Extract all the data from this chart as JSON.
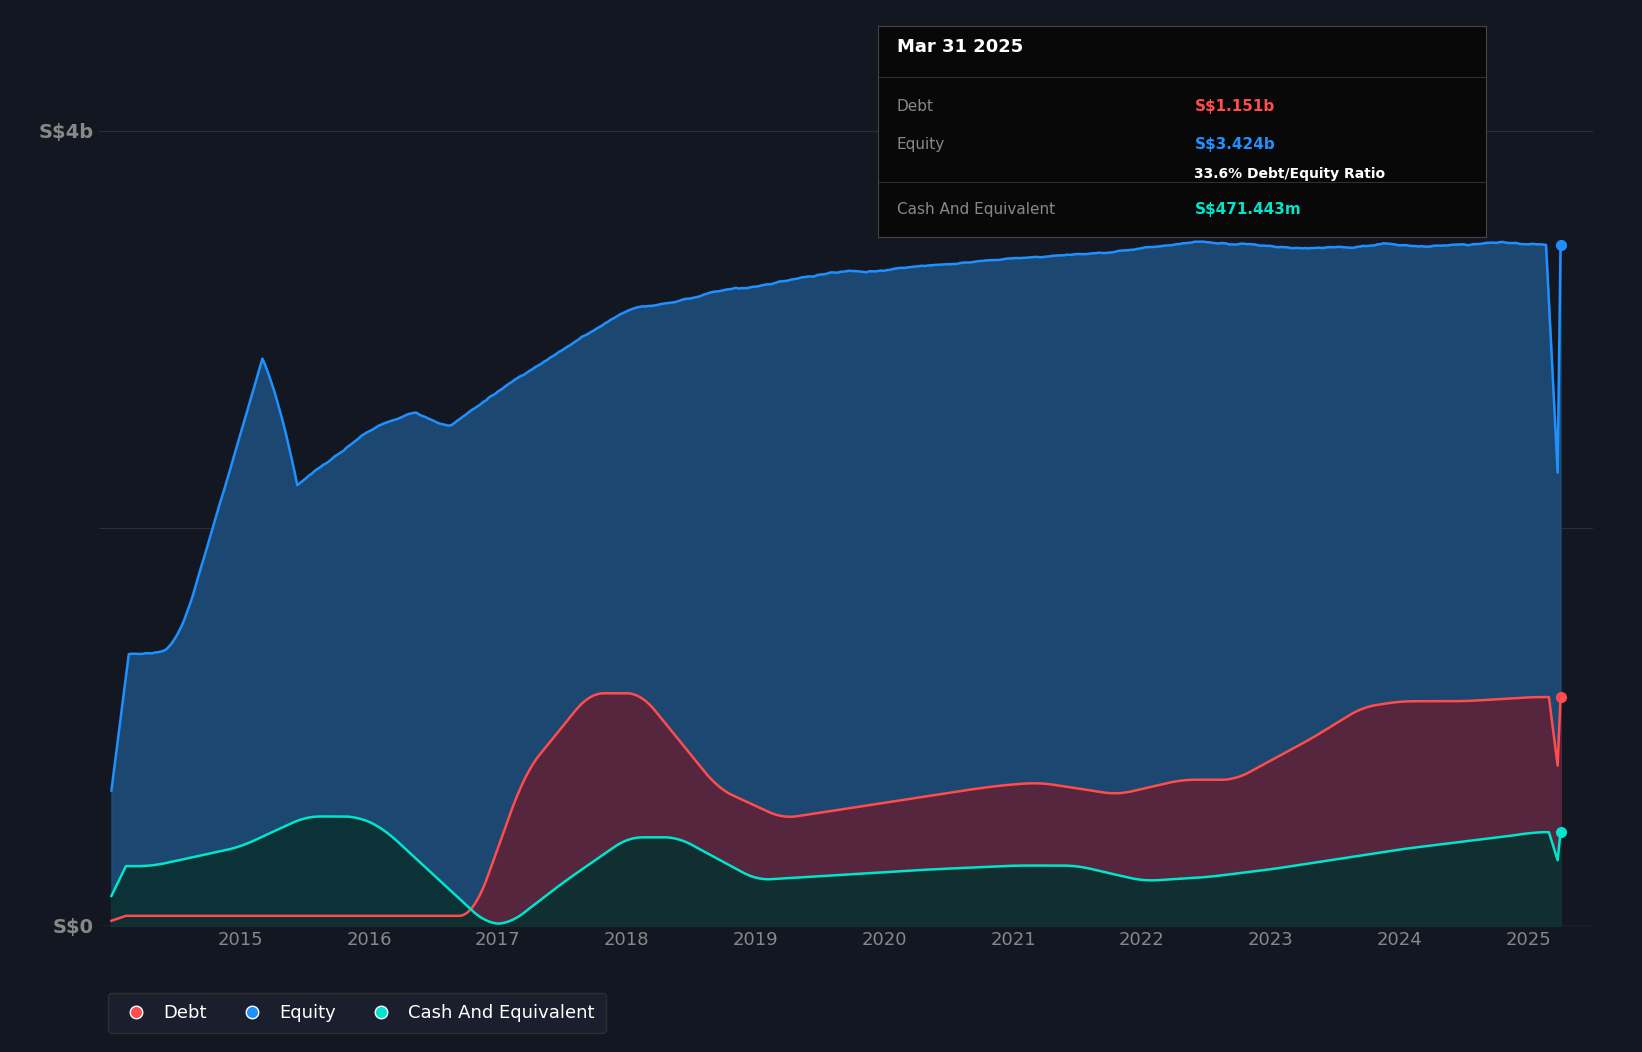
{
  "bg_color": "#131722",
  "plot_bg_color": "#131722",
  "grid_color": "#2a2e39",
  "text_color": "#ffffff",
  "tick_label_color": "#888888",
  "equity_color": "#1e90ff",
  "debt_color": "#ff4d4d",
  "cash_color": "#00e5cc",
  "equity_fill": "#1e5080",
  "debt_fill": "#6b1a2e",
  "cash_fill": "#0a3030",
  "tooltip_title": "Mar 31 2025",
  "tooltip_debt_label": "Debt",
  "tooltip_debt_value": "S$1.151b",
  "tooltip_equity_label": "Equity",
  "tooltip_equity_value": "S$3.424b",
  "tooltip_ratio": "33.6% Debt/Equity Ratio",
  "tooltip_cash_label": "Cash And Equivalent",
  "tooltip_cash_value": "S$471.443m",
  "legend_items": [
    "Debt",
    "Equity",
    "Cash And Equivalent"
  ],
  "legend_colors": [
    "#ff4d4d",
    "#1e90ff",
    "#00e5cc"
  ]
}
